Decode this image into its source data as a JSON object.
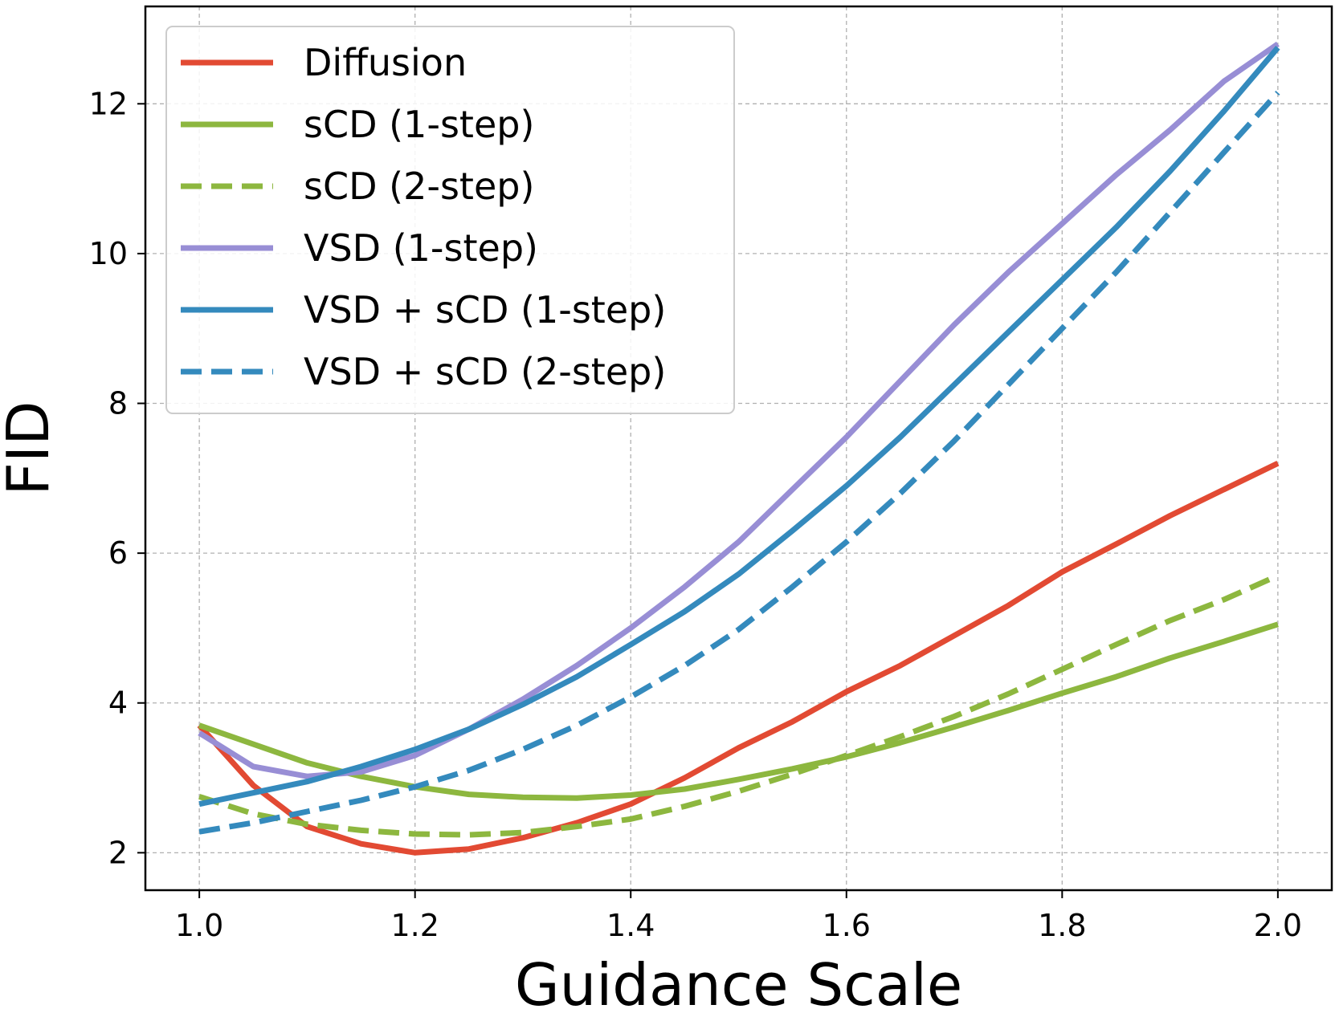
{
  "chart_data": {
    "type": "line",
    "title": "",
    "xlabel": "Guidance Scale",
    "ylabel": "FID",
    "xlim": [
      0.95,
      2.05
    ],
    "ylim": [
      1.5,
      13.3
    ],
    "xticks": [
      1.0,
      1.2,
      1.4,
      1.6,
      1.8,
      2.0
    ],
    "xtick_labels": [
      "1.0",
      "1.2",
      "1.4",
      "1.6",
      "1.8",
      "2.0"
    ],
    "yticks": [
      2,
      4,
      6,
      8,
      10,
      12
    ],
    "ytick_labels": [
      "2",
      "4",
      "6",
      "8",
      "10",
      "12"
    ],
    "grid": true,
    "legend_position": "upper-left",
    "series": [
      {
        "name": "Diffusion",
        "color": "#e24a33",
        "dashed": false,
        "x": [
          1.0,
          1.05,
          1.1,
          1.15,
          1.2,
          1.25,
          1.3,
          1.35,
          1.4,
          1.45,
          1.5,
          1.55,
          1.6,
          1.65,
          1.7,
          1.75,
          1.8,
          1.85,
          1.9,
          1.95,
          2.0
        ],
        "y": [
          3.7,
          2.9,
          2.35,
          2.12,
          2.0,
          2.05,
          2.2,
          2.4,
          2.65,
          3.0,
          3.4,
          3.75,
          4.15,
          4.5,
          4.9,
          5.3,
          5.75,
          6.12,
          6.5,
          6.85,
          7.2
        ]
      },
      {
        "name": "sCD (1-step)",
        "color": "#8db73f",
        "dashed": false,
        "x": [
          1.0,
          1.05,
          1.1,
          1.15,
          1.2,
          1.25,
          1.3,
          1.35,
          1.4,
          1.45,
          1.5,
          1.55,
          1.6,
          1.65,
          1.7,
          1.75,
          1.8,
          1.85,
          1.9,
          1.95,
          2.0
        ],
        "y": [
          3.7,
          3.45,
          3.2,
          3.02,
          2.88,
          2.78,
          2.74,
          2.73,
          2.77,
          2.85,
          2.98,
          3.12,
          3.28,
          3.47,
          3.68,
          3.9,
          4.13,
          4.35,
          4.6,
          4.82,
          5.05
        ]
      },
      {
        "name": "sCD (2-step)",
        "color": "#8db73f",
        "dashed": true,
        "x": [
          1.0,
          1.05,
          1.1,
          1.15,
          1.2,
          1.25,
          1.3,
          1.35,
          1.4,
          1.45,
          1.5,
          1.55,
          1.6,
          1.65,
          1.7,
          1.75,
          1.8,
          1.85,
          1.9,
          1.95,
          2.0
        ],
        "y": [
          2.75,
          2.52,
          2.38,
          2.3,
          2.25,
          2.24,
          2.27,
          2.35,
          2.45,
          2.62,
          2.82,
          3.05,
          3.3,
          3.55,
          3.82,
          4.12,
          4.45,
          4.78,
          5.1,
          5.38,
          5.7
        ]
      },
      {
        "name": "VSD (1-step)",
        "color": "#988ed5",
        "dashed": false,
        "x": [
          1.0,
          1.05,
          1.1,
          1.15,
          1.2,
          1.25,
          1.3,
          1.35,
          1.4,
          1.45,
          1.5,
          1.55,
          1.6,
          1.65,
          1.7,
          1.75,
          1.8,
          1.85,
          1.9,
          1.95,
          2.0
        ],
        "y": [
          3.6,
          3.15,
          3.02,
          3.08,
          3.3,
          3.65,
          4.05,
          4.5,
          5.0,
          5.55,
          6.15,
          6.85,
          7.55,
          8.3,
          9.05,
          9.75,
          10.4,
          11.05,
          11.65,
          12.3,
          12.8
        ]
      },
      {
        "name": "VSD + sCD (1-step)",
        "color": "#348abd",
        "dashed": false,
        "x": [
          1.0,
          1.05,
          1.1,
          1.15,
          1.2,
          1.25,
          1.3,
          1.35,
          1.4,
          1.45,
          1.5,
          1.55,
          1.6,
          1.65,
          1.7,
          1.75,
          1.8,
          1.85,
          1.9,
          1.95,
          2.0
        ],
        "y": [
          2.65,
          2.8,
          2.95,
          3.15,
          3.38,
          3.65,
          3.98,
          4.35,
          4.78,
          5.22,
          5.72,
          6.3,
          6.9,
          7.55,
          8.25,
          8.95,
          9.65,
          10.35,
          11.1,
          11.9,
          12.75
        ]
      },
      {
        "name": "VSD + sCD (2-step)",
        "color": "#348abd",
        "dashed": true,
        "x": [
          1.0,
          1.05,
          1.1,
          1.15,
          1.2,
          1.25,
          1.3,
          1.35,
          1.4,
          1.45,
          1.5,
          1.55,
          1.6,
          1.65,
          1.7,
          1.75,
          1.8,
          1.85,
          1.9,
          1.95,
          2.0
        ],
        "y": [
          2.28,
          2.4,
          2.55,
          2.7,
          2.88,
          3.1,
          3.38,
          3.7,
          4.08,
          4.5,
          4.98,
          5.55,
          6.15,
          6.8,
          7.5,
          8.25,
          9.0,
          9.75,
          10.55,
          11.35,
          12.15
        ]
      }
    ]
  }
}
